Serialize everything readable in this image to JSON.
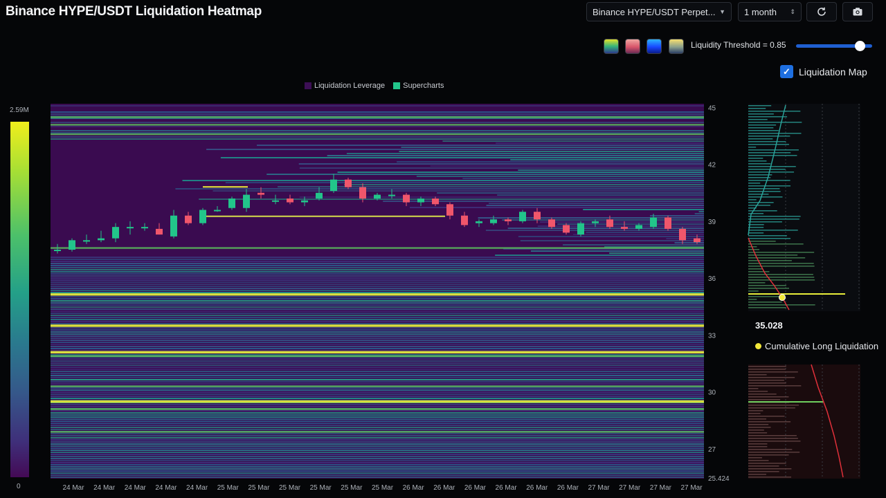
{
  "header": {
    "title": "Binance HYPE/USDT Liquidation Heatmap",
    "market_select": "Binance HYPE/USDT Perpet...",
    "period_select": "1 month",
    "refresh_icon": "refresh-icon",
    "camera_icon": "camera-icon"
  },
  "controls": {
    "palettes": [
      "viridis-gradient",
      "rose-gradient",
      "blue-gradient",
      "sand-gradient"
    ],
    "threshold_label": "Liquidity Threshold = 0.85",
    "threshold_value": 0.85,
    "liquidation_map_label": "Liquidation Map",
    "liquidation_map_checked": true
  },
  "legend": {
    "items": [
      {
        "label": "Liquidation Leverage",
        "color": "#3c0f55"
      },
      {
        "label": "Supercharts",
        "color": "#22c58a"
      }
    ]
  },
  "colorbar": {
    "max_label": "2.59M",
    "min_label": "0"
  },
  "tooltip": {
    "price": "35.028",
    "label": "Cumulative Long Liquidation",
    "color": "#f3e83a"
  },
  "chart_data": {
    "type": "heatmap",
    "title": "",
    "y_axis": {
      "ticks": [
        "45",
        "42",
        "39",
        "36",
        "33",
        "30",
        "27",
        "25.424"
      ],
      "tick_values": [
        45,
        42,
        39,
        36,
        33,
        30,
        27,
        25.424
      ],
      "range": [
        25.424,
        45.2
      ]
    },
    "x_axis": {
      "ticks": [
        "24 Mar",
        "24 Mar",
        "24 Mar",
        "24 Mar",
        "24 Mar",
        "25 Mar",
        "25 Mar",
        "25 Mar",
        "25 Mar",
        "25 Mar",
        "25 Mar",
        "26 Mar",
        "26 Mar",
        "26 Mar",
        "26 Mar",
        "26 Mar",
        "26 Mar",
        "27 Mar",
        "27 Mar",
        "27 Mar",
        "27 Mar"
      ]
    },
    "colors": {
      "up": "#22c58a",
      "down": "#f0566b",
      "background": "#3a0b50",
      "bright_band": "#e9ee3a",
      "long_curve": "#e0303a",
      "short_curve": "#2aa39a"
    },
    "candles": [
      {
        "o": 37.5,
        "h": 37.8,
        "l": 37.3,
        "c": 37.5
      },
      {
        "o": 37.5,
        "h": 38.1,
        "l": 37.4,
        "c": 38.0
      },
      {
        "o": 38.0,
        "h": 38.3,
        "l": 37.8,
        "c": 38.0
      },
      {
        "o": 38.0,
        "h": 38.5,
        "l": 37.9,
        "c": 38.1
      },
      {
        "o": 38.1,
        "h": 38.9,
        "l": 37.9,
        "c": 38.7
      },
      {
        "o": 38.7,
        "h": 39.0,
        "l": 38.3,
        "c": 38.7
      },
      {
        "o": 38.7,
        "h": 38.9,
        "l": 38.5,
        "c": 38.7
      },
      {
        "o": 38.6,
        "h": 38.9,
        "l": 38.3,
        "c": 38.3
      },
      {
        "o": 38.2,
        "h": 39.6,
        "l": 38.1,
        "c": 39.3
      },
      {
        "o": 39.3,
        "h": 39.5,
        "l": 38.8,
        "c": 38.9
      },
      {
        "o": 38.9,
        "h": 39.7,
        "l": 38.8,
        "c": 39.6
      },
      {
        "o": 39.6,
        "h": 39.8,
        "l": 39.5,
        "c": 39.6
      },
      {
        "o": 39.7,
        "h": 40.3,
        "l": 39.6,
        "c": 40.2
      },
      {
        "o": 39.7,
        "h": 40.7,
        "l": 39.5,
        "c": 40.4
      },
      {
        "o": 40.5,
        "h": 40.8,
        "l": 40.2,
        "c": 40.4
      },
      {
        "o": 40.1,
        "h": 40.4,
        "l": 39.9,
        "c": 40.1
      },
      {
        "o": 40.2,
        "h": 40.4,
        "l": 39.9,
        "c": 40.0
      },
      {
        "o": 40.0,
        "h": 40.3,
        "l": 39.8,
        "c": 40.1
      },
      {
        "o": 40.2,
        "h": 40.8,
        "l": 40.1,
        "c": 40.5
      },
      {
        "o": 40.6,
        "h": 41.5,
        "l": 40.5,
        "c": 41.2
      },
      {
        "o": 41.2,
        "h": 41.3,
        "l": 40.7,
        "c": 40.8
      },
      {
        "o": 40.8,
        "h": 41.0,
        "l": 40.0,
        "c": 40.2
      },
      {
        "o": 40.2,
        "h": 40.5,
        "l": 40.1,
        "c": 40.4
      },
      {
        "o": 40.4,
        "h": 40.7,
        "l": 40.2,
        "c": 40.4
      },
      {
        "o": 40.4,
        "h": 40.5,
        "l": 39.8,
        "c": 40.0
      },
      {
        "o": 40.0,
        "h": 40.3,
        "l": 39.8,
        "c": 40.2
      },
      {
        "o": 40.2,
        "h": 40.3,
        "l": 39.8,
        "c": 39.9
      },
      {
        "o": 39.9,
        "h": 40.0,
        "l": 39.1,
        "c": 39.3
      },
      {
        "o": 39.3,
        "h": 39.5,
        "l": 38.7,
        "c": 38.8
      },
      {
        "o": 38.9,
        "h": 39.1,
        "l": 38.7,
        "c": 39.0
      },
      {
        "o": 38.9,
        "h": 39.3,
        "l": 38.8,
        "c": 39.1
      },
      {
        "o": 39.1,
        "h": 39.2,
        "l": 38.8,
        "c": 39.0
      },
      {
        "o": 39.0,
        "h": 39.6,
        "l": 38.9,
        "c": 39.5
      },
      {
        "o": 39.5,
        "h": 39.7,
        "l": 38.9,
        "c": 39.1
      },
      {
        "o": 39.1,
        "h": 39.2,
        "l": 38.6,
        "c": 38.7
      },
      {
        "o": 38.8,
        "h": 38.9,
        "l": 38.3,
        "c": 38.4
      },
      {
        "o": 38.3,
        "h": 39.0,
        "l": 38.2,
        "c": 38.9
      },
      {
        "o": 38.9,
        "h": 39.1,
        "l": 38.7,
        "c": 39.0
      },
      {
        "o": 39.1,
        "h": 39.3,
        "l": 38.6,
        "c": 38.7
      },
      {
        "o": 38.7,
        "h": 39.0,
        "l": 38.5,
        "c": 38.6
      },
      {
        "o": 38.6,
        "h": 38.9,
        "l": 38.5,
        "c": 38.8
      },
      {
        "o": 38.7,
        "h": 39.4,
        "l": 38.6,
        "c": 39.2
      },
      {
        "o": 39.2,
        "h": 39.3,
        "l": 38.5,
        "c": 38.6
      },
      {
        "o": 38.6,
        "h": 38.7,
        "l": 37.8,
        "c": 38.0
      },
      {
        "o": 38.1,
        "h": 38.3,
        "l": 37.8,
        "c": 37.9
      }
    ]
  }
}
